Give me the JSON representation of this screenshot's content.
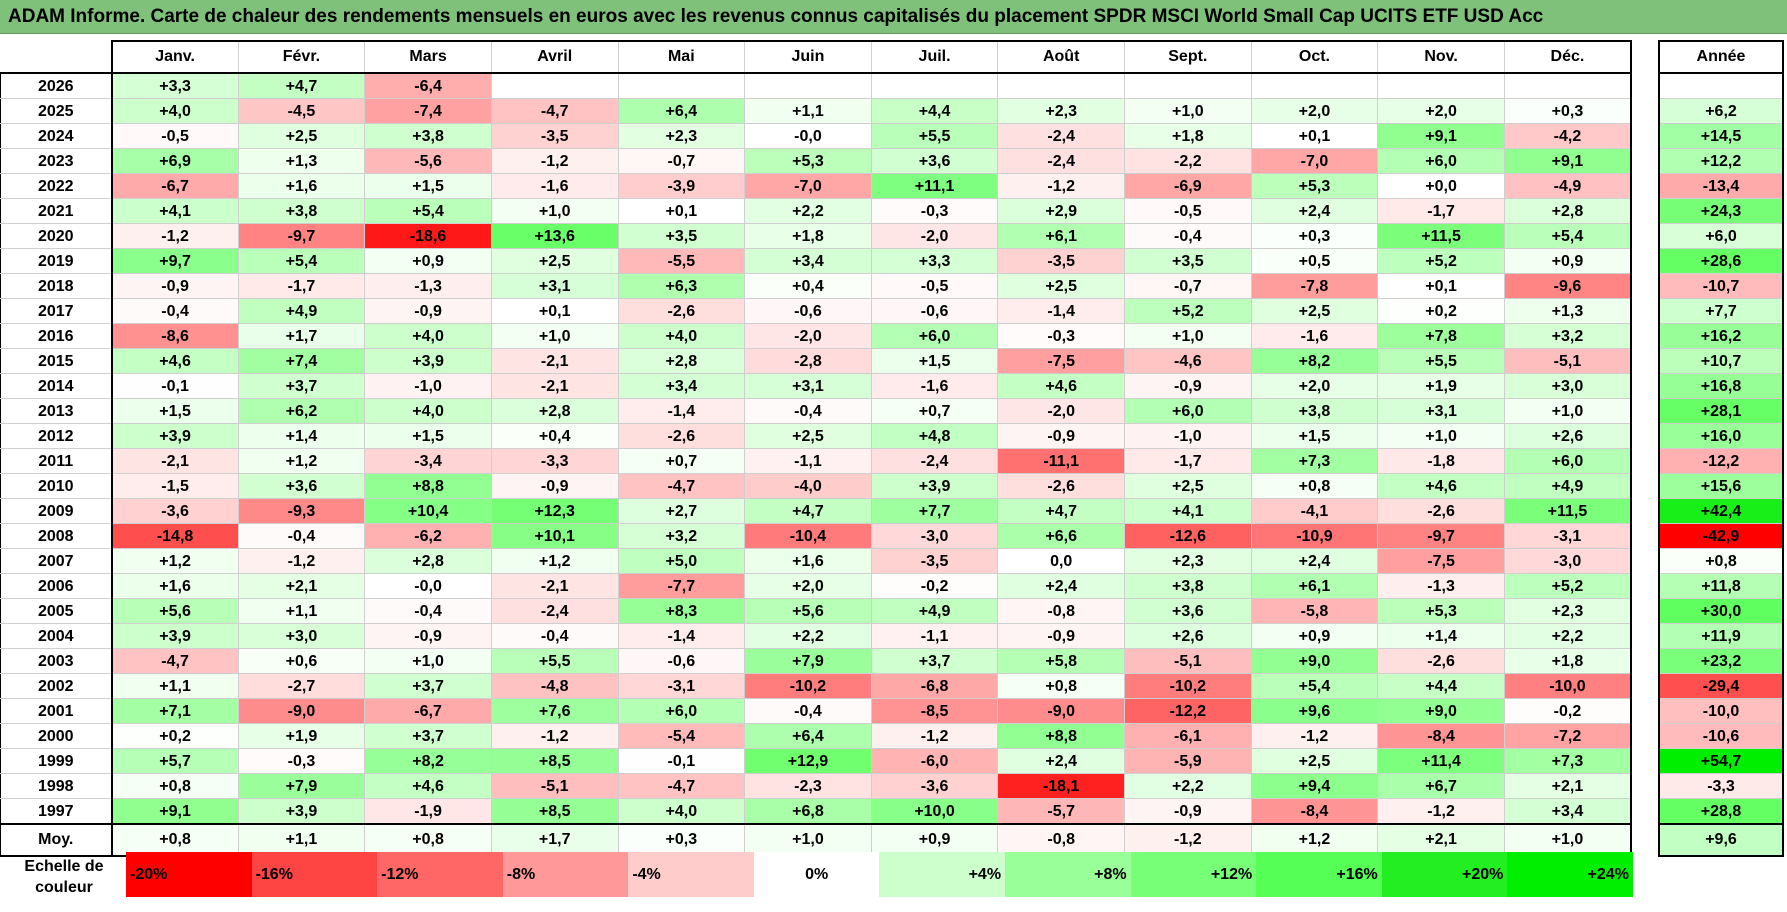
{
  "title": "ADAM Informe. Carte de chaleur des rendements mensuels en euros avec les revenus connus capitalisés du placement SPDR MSCI World Small Cap UCITS ETF USD Acc",
  "chart_data": {
    "type": "heatmap",
    "title": "ADAM Informe. Carte de chaleur des rendements mensuels en euros avec les revenus connus capitalisés du placement SPDR MSCI World Small Cap UCITS ETF USD Acc",
    "months": [
      "Janv.",
      "Févr.",
      "Mars",
      "Avril",
      "Mai",
      "Juin",
      "Juil.",
      "Août",
      "Sept.",
      "Oct.",
      "Nov.",
      "Déc."
    ],
    "annual_header": "Année",
    "rows": [
      {
        "year": "2026",
        "values": [
          "+3,3",
          "+4,7",
          "-6,4",
          "",
          "",
          "",
          "",
          "",
          "",
          "",
          "",
          ""
        ],
        "annual": ""
      },
      {
        "year": "2025",
        "values": [
          "+4,0",
          "-4,5",
          "-7,4",
          "-4,7",
          "+6,4",
          "+1,1",
          "+4,4",
          "+2,3",
          "+1,0",
          "+2,0",
          "+2,0",
          "+0,3"
        ],
        "annual": "+6,2"
      },
      {
        "year": "2024",
        "values": [
          "-0,5",
          "+2,5",
          "+3,8",
          "-3,5",
          "+2,3",
          "-0,0",
          "+5,5",
          "-2,4",
          "+1,8",
          "+0,1",
          "+9,1",
          "-4,2"
        ],
        "annual": "+14,5"
      },
      {
        "year": "2023",
        "values": [
          "+6,9",
          "+1,3",
          "-5,6",
          "-1,2",
          "-0,7",
          "+5,3",
          "+3,6",
          "-2,4",
          "-2,2",
          "-7,0",
          "+6,0",
          "+9,1"
        ],
        "annual": "+12,2"
      },
      {
        "year": "2022",
        "values": [
          "-6,7",
          "+1,6",
          "+1,5",
          "-1,6",
          "-3,9",
          "-7,0",
          "+11,1",
          "-1,2",
          "-6,9",
          "+5,3",
          "+0,0",
          "-4,9"
        ],
        "annual": "-13,4"
      },
      {
        "year": "2021",
        "values": [
          "+4,1",
          "+3,8",
          "+5,4",
          "+1,0",
          "+0,1",
          "+2,2",
          "-0,3",
          "+2,9",
          "-0,5",
          "+2,4",
          "-1,7",
          "+2,8"
        ],
        "annual": "+24,3"
      },
      {
        "year": "2020",
        "values": [
          "-1,2",
          "-9,7",
          "-18,6",
          "+13,6",
          "+3,5",
          "+1,8",
          "-2,0",
          "+6,1",
          "-0,4",
          "+0,3",
          "+11,5",
          "+5,4"
        ],
        "annual": "+6,0"
      },
      {
        "year": "2019",
        "values": [
          "+9,7",
          "+5,4",
          "+0,9",
          "+2,5",
          "-5,5",
          "+3,4",
          "+3,3",
          "-3,5",
          "+3,5",
          "+0,5",
          "+5,2",
          "+0,9"
        ],
        "annual": "+28,6"
      },
      {
        "year": "2018",
        "values": [
          "-0,9",
          "-1,7",
          "-1,3",
          "+3,1",
          "+6,3",
          "+0,4",
          "-0,5",
          "+2,5",
          "-0,7",
          "-7,8",
          "+0,1",
          "-9,6"
        ],
        "annual": "-10,7"
      },
      {
        "year": "2017",
        "values": [
          "-0,4",
          "+4,9",
          "-0,9",
          "+0,1",
          "-2,6",
          "-0,6",
          "-0,6",
          "-1,4",
          "+5,2",
          "+2,5",
          "+0,2",
          "+1,3"
        ],
        "annual": "+7,7"
      },
      {
        "year": "2016",
        "values": [
          "-8,6",
          "+1,7",
          "+4,0",
          "+1,0",
          "+4,0",
          "-2,0",
          "+6,0",
          "-0,3",
          "+1,0",
          "-1,6",
          "+7,8",
          "+3,2"
        ],
        "annual": "+16,2"
      },
      {
        "year": "2015",
        "values": [
          "+4,6",
          "+7,4",
          "+3,9",
          "-2,1",
          "+2,8",
          "-2,8",
          "+1,5",
          "-7,5",
          "-4,6",
          "+8,2",
          "+5,5",
          "-5,1"
        ],
        "annual": "+10,7"
      },
      {
        "year": "2014",
        "values": [
          "-0,1",
          "+3,7",
          "-1,0",
          "-2,1",
          "+3,4",
          "+3,1",
          "-1,6",
          "+4,6",
          "-0,9",
          "+2,0",
          "+1,9",
          "+3,0"
        ],
        "annual": "+16,8"
      },
      {
        "year": "2013",
        "values": [
          "+1,5",
          "+6,2",
          "+4,0",
          "+2,8",
          "-1,4",
          "-0,4",
          "+0,7",
          "-2,0",
          "+6,0",
          "+3,8",
          "+3,1",
          "+1,0"
        ],
        "annual": "+28,1"
      },
      {
        "year": "2012",
        "values": [
          "+3,9",
          "+1,4",
          "+1,5",
          "+0,4",
          "-2,6",
          "+2,5",
          "+4,8",
          "-0,9",
          "-1,0",
          "+1,5",
          "+1,0",
          "+2,6"
        ],
        "annual": "+16,0"
      },
      {
        "year": "2011",
        "values": [
          "-2,1",
          "+1,2",
          "-3,4",
          "-3,3",
          "+0,7",
          "-1,1",
          "-2,4",
          "-11,1",
          "-1,7",
          "+7,3",
          "-1,8",
          "+6,0"
        ],
        "annual": "-12,2"
      },
      {
        "year": "2010",
        "values": [
          "-1,5",
          "+3,6",
          "+8,8",
          "-0,9",
          "-4,7",
          "-4,0",
          "+3,9",
          "-2,6",
          "+2,5",
          "+0,8",
          "+4,6",
          "+4,9"
        ],
        "annual": "+15,6"
      },
      {
        "year": "2009",
        "values": [
          "-3,6",
          "-9,3",
          "+10,4",
          "+12,3",
          "+2,7",
          "+4,7",
          "+7,7",
          "+4,7",
          "+4,1",
          "-4,1",
          "-2,6",
          "+11,5"
        ],
        "annual": "+42,4"
      },
      {
        "year": "2008",
        "values": [
          "-14,8",
          "-0,4",
          "-6,2",
          "+10,1",
          "+3,2",
          "-10,4",
          "-3,0",
          "+6,6",
          "-12,6",
          "-10,9",
          "-9,7",
          "-3,1"
        ],
        "annual": "-42,9"
      },
      {
        "year": "2007",
        "values": [
          "+1,2",
          "-1,2",
          "+2,8",
          "+1,2",
          "+5,0",
          "+1,6",
          "-3,5",
          "0,0",
          "+2,3",
          "+2,4",
          "-7,5",
          "-3,0"
        ],
        "annual": "+0,8"
      },
      {
        "year": "2006",
        "values": [
          "+1,6",
          "+2,1",
          "-0,0",
          "-2,1",
          "-7,7",
          "+2,0",
          "-0,2",
          "+2,4",
          "+3,8",
          "+6,1",
          "-1,3",
          "+5,2"
        ],
        "annual": "+11,8"
      },
      {
        "year": "2005",
        "values": [
          "+5,6",
          "+1,1",
          "-0,4",
          "-2,4",
          "+8,3",
          "+5,6",
          "+4,9",
          "-0,8",
          "+3,6",
          "-5,8",
          "+5,3",
          "+2,3"
        ],
        "annual": "+30,0"
      },
      {
        "year": "2004",
        "values": [
          "+3,9",
          "+3,0",
          "-0,9",
          "-0,4",
          "-1,4",
          "+2,2",
          "-1,1",
          "-0,9",
          "+2,6",
          "+0,9",
          "+1,4",
          "+2,2"
        ],
        "annual": "+11,9"
      },
      {
        "year": "2003",
        "values": [
          "-4,7",
          "+0,6",
          "+1,0",
          "+5,5",
          "-0,6",
          "+7,9",
          "+3,7",
          "+5,8",
          "-5,1",
          "+9,0",
          "-2,6",
          "+1,8"
        ],
        "annual": "+23,2"
      },
      {
        "year": "2002",
        "values": [
          "+1,1",
          "-2,7",
          "+3,7",
          "-4,8",
          "-3,1",
          "-10,2",
          "-6,8",
          "+0,8",
          "-10,2",
          "+5,4",
          "+4,4",
          "-10,0"
        ],
        "annual": "-29,4"
      },
      {
        "year": "2001",
        "values": [
          "+7,1",
          "-9,0",
          "-6,7",
          "+7,6",
          "+6,0",
          "-0,4",
          "-8,5",
          "-9,0",
          "-12,2",
          "+9,6",
          "+9,0",
          "-0,2"
        ],
        "annual": "-10,0"
      },
      {
        "year": "2000",
        "values": [
          "+0,2",
          "+1,9",
          "+3,7",
          "-1,2",
          "-5,4",
          "+6,4",
          "-1,2",
          "+8,8",
          "-6,1",
          "-1,2",
          "-8,4",
          "-7,2"
        ],
        "annual": "-10,6"
      },
      {
        "year": "1999",
        "values": [
          "+5,7",
          "-0,3",
          "+8,2",
          "+8,5",
          "-0,1",
          "+12,9",
          "-6,0",
          "+2,4",
          "-5,9",
          "+2,5",
          "+11,4",
          "+7,3"
        ],
        "annual": "+54,7"
      },
      {
        "year": "1998",
        "values": [
          "+0,8",
          "+7,9",
          "+4,6",
          "-5,1",
          "-4,7",
          "-2,3",
          "-3,6",
          "-18,1",
          "+2,2",
          "+9,4",
          "+6,7",
          "+2,1"
        ],
        "annual": "-3,3"
      },
      {
        "year": "1997",
        "values": [
          "+9,1",
          "+3,9",
          "-1,9",
          "+8,5",
          "+4,0",
          "+6,8",
          "+10,0",
          "-5,7",
          "-0,9",
          "-8,4",
          "-1,2",
          "+3,4"
        ],
        "annual": "+28,8"
      }
    ],
    "average": {
      "label": "Moy.",
      "values": [
        "+0,8",
        "+1,1",
        "+0,8",
        "+1,7",
        "+0,3",
        "+1,0",
        "+0,9",
        "-0,8",
        "-1,2",
        "+1,2",
        "+2,1",
        "+1,0"
      ],
      "annual": "+9,6"
    },
    "color_scale": {
      "label": "Echelle de couleur",
      "steps": [
        {
          "label": "-20%",
          "value": -20,
          "color": "#ff0000"
        },
        {
          "label": "-16%",
          "value": -16,
          "color": "#ff4444"
        },
        {
          "label": "-12%",
          "value": -12,
          "color": "#ff6666"
        },
        {
          "label": "-8%",
          "value": -8,
          "color": "#ff9999"
        },
        {
          "label": "-4%",
          "value": -4,
          "color": "#ffcccc"
        },
        {
          "label": "0%",
          "value": 0,
          "color": "#ffffff"
        },
        {
          "label": "+4%",
          "value": 4,
          "color": "#ccffcc"
        },
        {
          "label": "+8%",
          "value": 8,
          "color": "#99ff99"
        },
        {
          "label": "+12%",
          "value": 12,
          "color": "#77ff77"
        },
        {
          "label": "+16%",
          "value": 16,
          "color": "#55ff55"
        },
        {
          "label": "+20%",
          "value": 20,
          "color": "#22ee22"
        },
        {
          "label": "+24%",
          "value": 24,
          "color": "#00ee00"
        }
      ]
    }
  }
}
